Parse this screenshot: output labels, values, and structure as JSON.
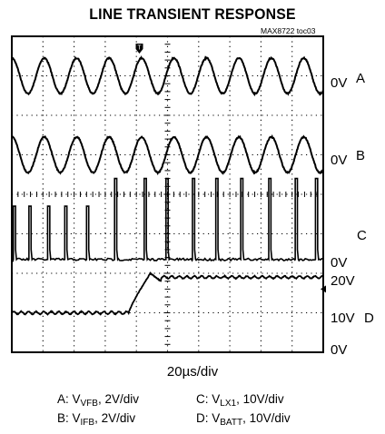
{
  "chart_data": {
    "type": "line",
    "title": "LINE TRANSIENT RESPONSE",
    "figure_id": "MAX8722 toc03",
    "xlabel": "20µs/div",
    "grid": true,
    "trigger_marker": "T",
    "x_divisions": 10,
    "y_divisions": 8,
    "channel_labels": [
      {
        "id": "A",
        "label": "A",
        "ground_label": "0V"
      },
      {
        "id": "B",
        "label": "B",
        "ground_label": "0V"
      },
      {
        "id": "C",
        "label": "C",
        "ground_label": "0V"
      },
      {
        "id": "D",
        "label": "D",
        "levels": [
          "20V",
          "10V",
          "0V"
        ]
      }
    ],
    "right_labels": {
      "a_zero": "0V",
      "a_name": "A",
      "b_zero": "0V",
      "b_name": "B",
      "c_name": "C",
      "c_zero": "0V",
      "d_20": "20V",
      "d_10": "10V",
      "d_name": "D",
      "d_0": "0V"
    },
    "series": [
      {
        "id": "A",
        "scale": "2V/div",
        "waveform": "sine",
        "cycles_per_screen": 9.6,
        "amplitude_div": 0.9
      },
      {
        "id": "B",
        "scale": "2V/div",
        "waveform": "sine",
        "cycles_per_screen": 9.6,
        "amplitude_div": 0.9
      },
      {
        "id": "C",
        "scale": "10V/div",
        "waveform": "switching pulses",
        "pulse_times_div": [
          0.05,
          0.55,
          1.15,
          1.7,
          2.4,
          3.3,
          4.25,
          4.95,
          5.8,
          6.55,
          7.35,
          8.25,
          9.1,
          9.75
        ]
      },
      {
        "id": "D",
        "scale": "10V/div",
        "waveform": "step",
        "initial_V": 10,
        "peak_V": 20,
        "final_V": 19,
        "step_start_div": 3.75,
        "step_end_div": 4.45
      }
    ],
    "legend_lines": [
      {
        "name": "A",
        "prefix": "A: V",
        "sub": "VFB",
        "suffix": ", 2V/div"
      },
      {
        "name": "C",
        "prefix": "C: V",
        "sub": "LX1",
        "suffix": ", 10V/div"
      },
      {
        "name": "B",
        "prefix": "B: V",
        "sub": "IFB",
        "suffix": ", 2V/div"
      },
      {
        "name": "D",
        "prefix": "D: V",
        "sub": "BATT",
        "suffix": ", 10V/div"
      }
    ]
  }
}
